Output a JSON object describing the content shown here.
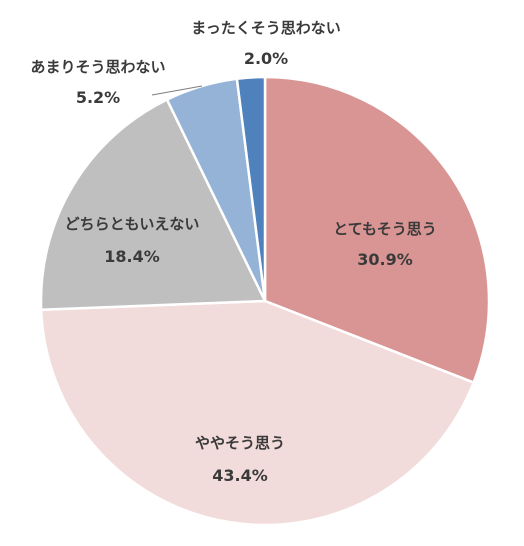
{
  "chart_data": {
    "type": "pie",
    "title": "",
    "start_angle_deg": 0,
    "direction": "clockwise",
    "slices": [
      {
        "label": "とてもそう思う",
        "value": 30.9,
        "value_label": "30.9%",
        "color": "#d99594"
      },
      {
        "label": "ややそう思う",
        "value": 43.4,
        "value_label": "43.4%",
        "color": "#f2dcdb"
      },
      {
        "label": "どちらともいえない",
        "value": 18.4,
        "value_label": "18.4%",
        "color": "#bfbfbf"
      },
      {
        "label": "あまりそう思わない",
        "value": 5.2,
        "value_label": "5.2%",
        "color": "#95b3d7"
      },
      {
        "label": "まったくそう思わない",
        "value": 2.0,
        "value_label": "2.0%",
        "color": "#4f81bd"
      }
    ]
  }
}
